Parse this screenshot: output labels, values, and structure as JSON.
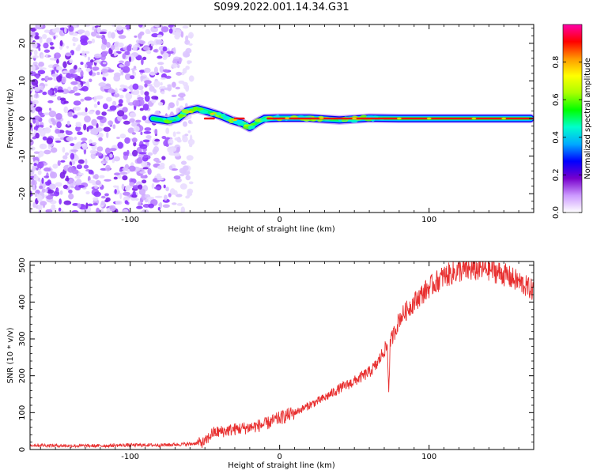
{
  "title": "S099.2022.001.14.34.G31",
  "chart_data": [
    {
      "type": "heatmap",
      "xlabel": "Height of straight line (km)",
      "ylabel": "Frequency (Hz)",
      "xlim": [
        -167,
        170
      ],
      "ylim": [
        -25,
        25
      ],
      "xticks": [
        -100,
        0,
        100
      ],
      "yticks": [
        -20,
        -10,
        0,
        10,
        20
      ],
      "noise_region": [
        -167,
        -62
      ],
      "signal_track": [
        {
          "x": -85,
          "y": 0.0
        },
        {
          "x": -75,
          "y": -0.6
        },
        {
          "x": -68,
          "y": 0.0
        },
        {
          "x": -62,
          "y": 2.0
        },
        {
          "x": -55,
          "y": 2.6
        },
        {
          "x": -48,
          "y": 1.8
        },
        {
          "x": -40,
          "y": 0.8
        },
        {
          "x": -32,
          "y": -0.5
        },
        {
          "x": -25,
          "y": -1.3
        },
        {
          "x": -20,
          "y": -2.4
        },
        {
          "x": -15,
          "y": -1.0
        },
        {
          "x": -10,
          "y": 0.0
        },
        {
          "x": 0,
          "y": 0.1
        },
        {
          "x": 20,
          "y": 0.1
        },
        {
          "x": 40,
          "y": -0.4
        },
        {
          "x": 60,
          "y": 0.1
        },
        {
          "x": 80,
          "y": 0.0
        },
        {
          "x": 120,
          "y": 0.0
        },
        {
          "x": 168,
          "y": 0.0
        }
      ],
      "colorbar": {
        "label": "Normalized spectral amplitude",
        "ticks": [
          "0.0",
          "0.2",
          "0.4",
          "0.6",
          "0.8"
        ],
        "range": [
          0,
          1
        ],
        "colors": [
          "#ffffff",
          "#cc99ff",
          "#7700cc",
          "#0000ff",
          "#00aaff",
          "#00ffcc",
          "#00ff00",
          "#aaff00",
          "#ffff00",
          "#ff9900",
          "#ff0000",
          "#ff00aa"
        ]
      }
    },
    {
      "type": "line",
      "xlabel": "Height of straight line (km)",
      "ylabel": "SNR (10 * v/v)",
      "xlim": [
        -167,
        170
      ],
      "ylim": [
        0,
        510
      ],
      "xticks": [
        -100,
        0,
        100
      ],
      "yticks": [
        0,
        100,
        200,
        300,
        400,
        500
      ],
      "color": "#e83030",
      "x": [
        -167,
        -140,
        -120,
        -100,
        -80,
        -60,
        -50,
        -45,
        -40,
        -30,
        -20,
        -10,
        0,
        10,
        20,
        30,
        40,
        50,
        60,
        65,
        70,
        72,
        73,
        74,
        75,
        78,
        80,
        90,
        100,
        110,
        120,
        130,
        140,
        150,
        160,
        170
      ],
      "values": [
        12,
        10,
        10,
        12,
        12,
        15,
        20,
        45,
        48,
        55,
        60,
        68,
        85,
        100,
        120,
        140,
        165,
        185,
        210,
        230,
        270,
        280,
        160,
        290,
        300,
        330,
        355,
        400,
        440,
        470,
        485,
        488,
        490,
        475,
        455,
        430
      ]
    }
  ]
}
